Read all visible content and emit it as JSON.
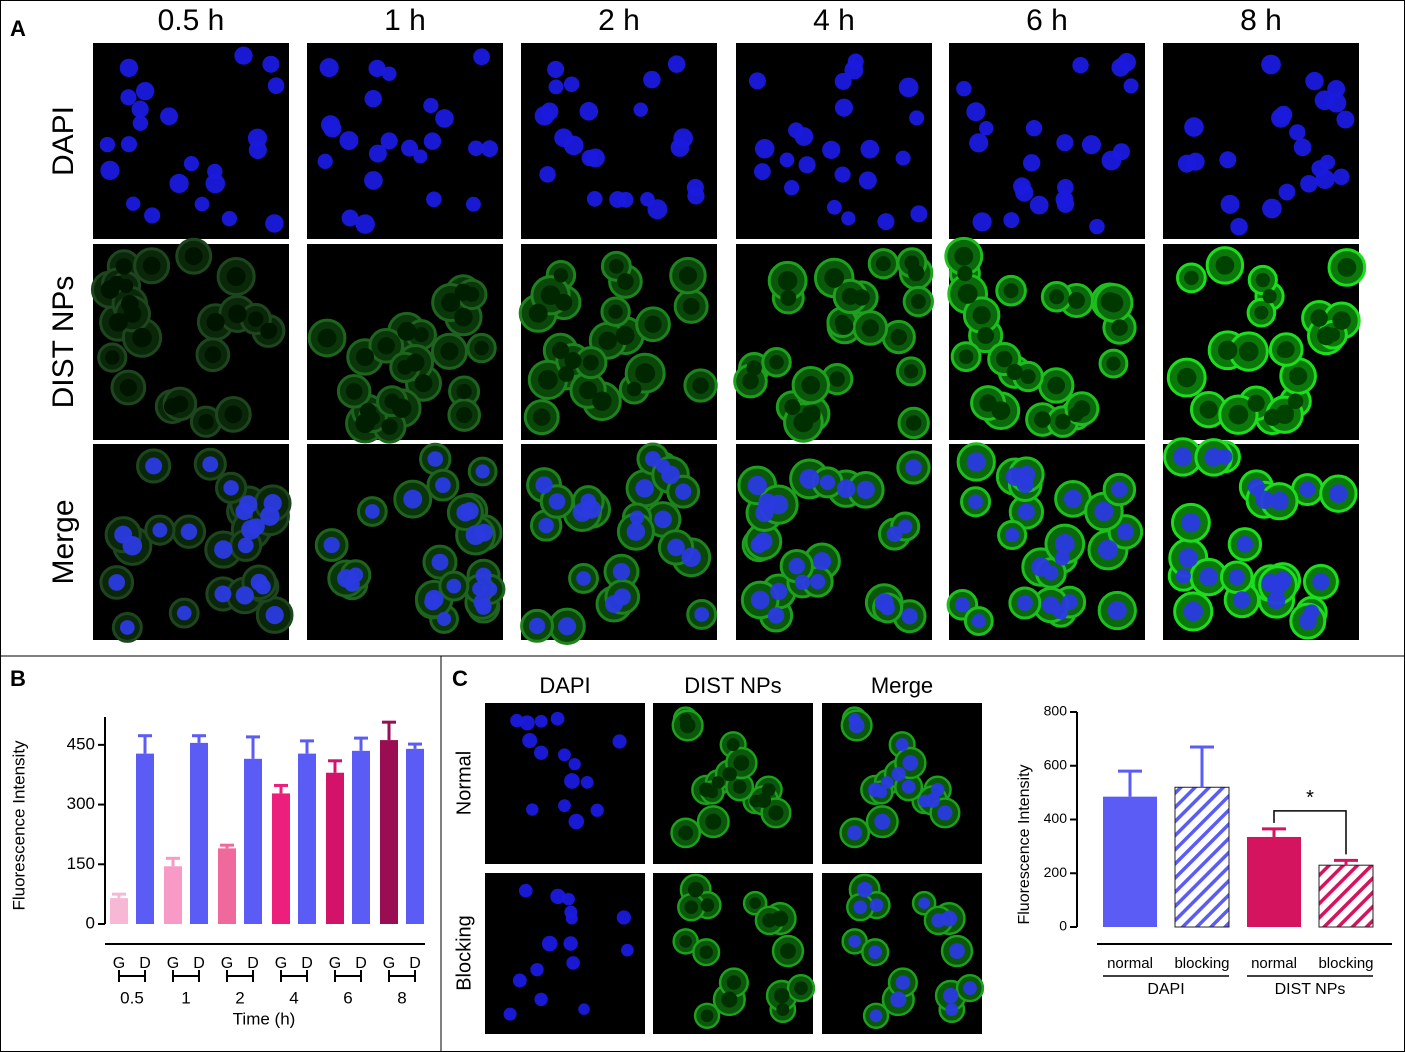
{
  "panel_labels": {
    "a": "A",
    "b": "B",
    "c": "C"
  },
  "panel_a": {
    "columns": [
      "0.5 h",
      "1 h",
      "2 h",
      "4 h",
      "6 h",
      "8 h"
    ],
    "rows": [
      "DAPI",
      "DIST NPs",
      "Merge"
    ]
  },
  "panel_c": {
    "columns": [
      "DAPI",
      "DIST NPs",
      "Merge"
    ],
    "rows": [
      "Normal",
      "Blocking"
    ]
  },
  "chart_data": [
    {
      "type": "bar",
      "y_label": "Fluorescence Intensity",
      "x_label": "Time (h)",
      "groups": [
        "0.5",
        "1",
        "2",
        "4",
        "6",
        "8"
      ],
      "series": [
        {
          "name": "G",
          "colors": [
            "#f7b8d6",
            "#f79ac6",
            "#f0699c",
            "#ec1f7c",
            "#d3136a",
            "#9a0d52"
          ],
          "values": [
            65,
            145,
            190,
            328,
            380,
            462
          ],
          "errors": [
            10,
            20,
            8,
            20,
            30,
            45
          ]
        },
        {
          "name": "D",
          "color": "#5b5bf5",
          "values": [
            428,
            455,
            415,
            428,
            435,
            440
          ],
          "errors": [
            45,
            18,
            55,
            32,
            32,
            12
          ]
        }
      ],
      "ylim": [
        0,
        520
      ],
      "yticks": [
        0,
        150,
        300,
        450
      ],
      "grid": false
    },
    {
      "type": "bar",
      "y_label": "Fluorescence Intensity",
      "categories": [
        "normal",
        "blocking"
      ],
      "hatch": [
        false,
        true
      ],
      "series": [
        {
          "name": "DAPI",
          "color": "#5b5bf5",
          "values": [
            485,
            520
          ],
          "errors": [
            95,
            150
          ]
        },
        {
          "name": "DIST NPs",
          "color": "#d4145f",
          "values": [
            335,
            230
          ],
          "errors": [
            30,
            18
          ]
        }
      ],
      "annotation": "*",
      "ylim": [
        0,
        800
      ],
      "yticks": [
        0,
        200,
        400,
        600,
        800
      ],
      "grid": false
    }
  ]
}
